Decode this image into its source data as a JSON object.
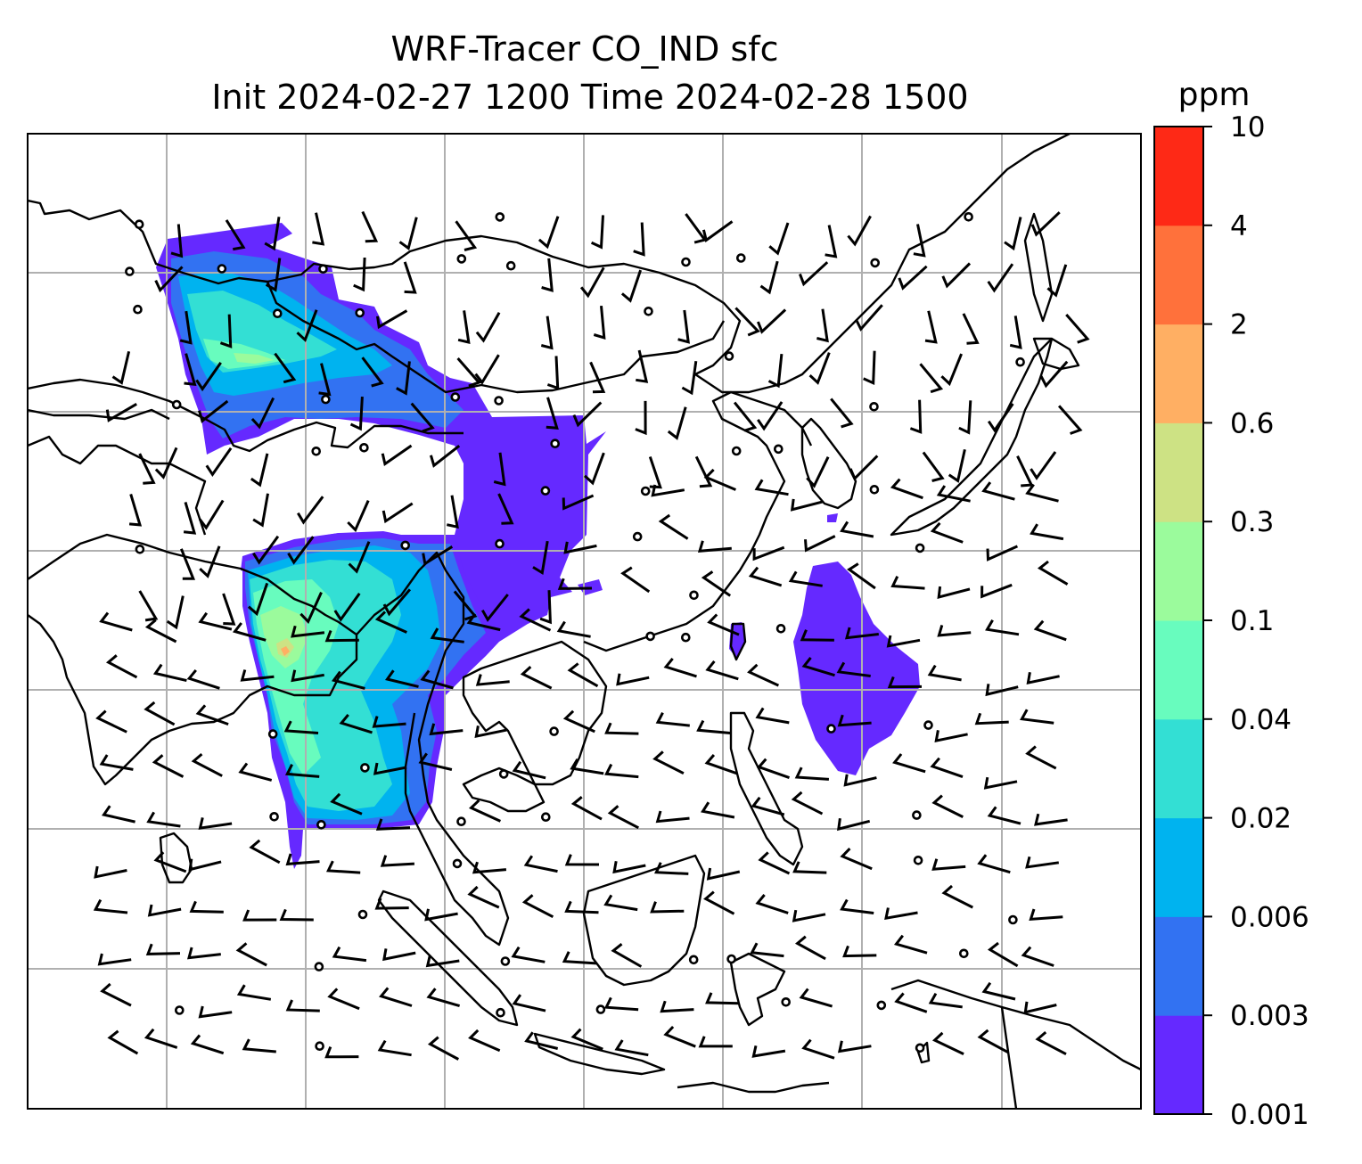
{
  "map": {
    "title_line1": "WRF-Tracer CO_IND sfc",
    "title_line2": "Init 2024-02-27 1200 Time 2024-02-28 1500",
    "extent": {
      "lon": [
        60,
        140
      ],
      "lat": [
        -10,
        35
      ]
    },
    "grid_spacing_deg": 10
  },
  "colorbar": {
    "unit": "ppm",
    "levels": [
      "0.001",
      "0.003",
      "0.006",
      "0.02",
      "0.04",
      "0.1",
      "0.3",
      "0.6",
      "2",
      "4",
      "10"
    ],
    "colors": [
      "#6529ff",
      "#3272f2",
      "#00b3ef",
      "#33dfd4",
      "#68fcbe",
      "#9bfb9c",
      "#cde284",
      "#ffaf63",
      "#ff713b",
      "#fe2916"
    ]
  },
  "colors": {
    "coastline": "#000000",
    "gridline": "#b0b0b0",
    "barb": "#000000",
    "background": "#ffffff"
  }
}
